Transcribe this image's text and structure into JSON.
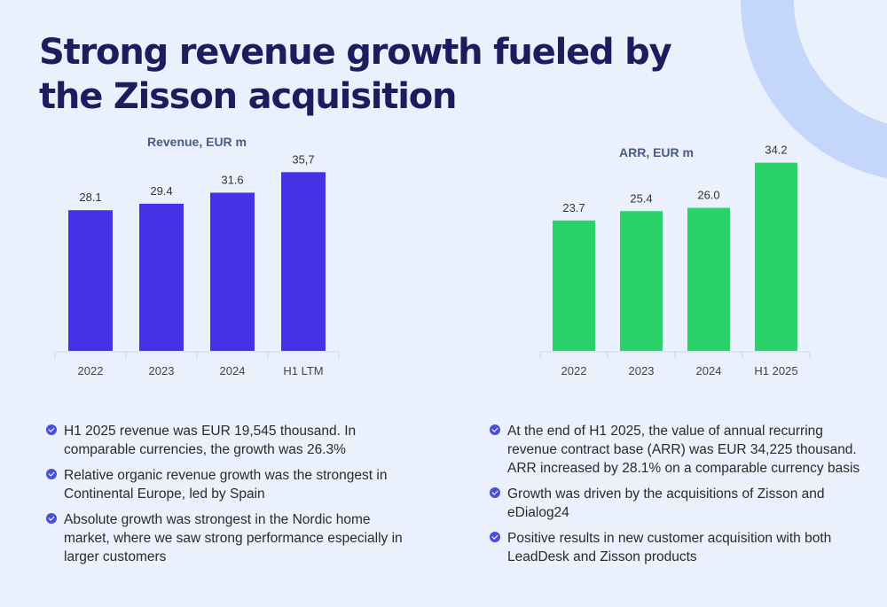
{
  "title": "Strong revenue growth fueled by the Zisson acquisition",
  "chart_data": [
    {
      "type": "bar",
      "title": "Revenue, EUR m",
      "categories": [
        "2022",
        "2023",
        "2024",
        "H1 LTM"
      ],
      "values": [
        28.1,
        29.4,
        31.6,
        35.7
      ],
      "value_labels": [
        "28.1",
        "29.4",
        "31.6",
        "35,7"
      ],
      "color": "#4433e6",
      "ylim": [
        0,
        40
      ],
      "grid": false
    },
    {
      "type": "bar",
      "title": "ARR, EUR m",
      "categories": [
        "2022",
        "2023",
        "2024",
        "H1 2025"
      ],
      "values": [
        23.7,
        25.4,
        26.0,
        34.2
      ],
      "value_labels": [
        "23.7",
        "25.4",
        "26.0",
        "34.2"
      ],
      "color": "#27d36a",
      "ylim": [
        0,
        38
      ],
      "grid": false
    }
  ],
  "bullets_left": [
    "H1 2025 revenue was EUR 19,545 thousand. In comparable currencies, the growth was 26.3%",
    "Relative organic revenue growth was the strongest in Continental Europe, led by Spain",
    "Absolute growth was strongest in the Nordic home market, where we saw strong performance especially in larger customers"
  ],
  "bullets_right": [
    "At the end of H1 2025, the value of annual recurring revenue contract base (ARR) was EUR 34,225 thousand. ARR increased by 28.1% on a comparable currency basis",
    "Growth was driven by the acquisitions of Zisson and eDialog24",
    "Positive results in new customer acquisition with both LeadDesk and Zisson products"
  ],
  "colors": {
    "background": "#eaf1fc",
    "title": "#1b1d5c",
    "accent_arc": "#c5d6fb",
    "bullet_icon": "#4a4fd9"
  },
  "icons": {
    "bullet": "check-circle-icon"
  }
}
